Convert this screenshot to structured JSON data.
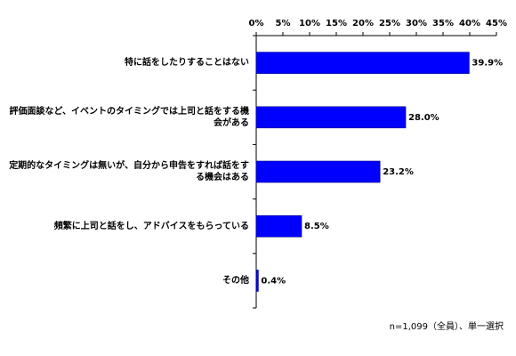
{
  "chart_data": {
    "type": "hbar",
    "categories": [
      "特に話をしたりすることはない",
      "評価面談など、イベントのタイミングでは上司と話をする機会がある",
      "定期的なタイミングは無いが、自分から申告をすれば話をする機会はある",
      "頻繁に上司と話をし、アドバイスをもらっている",
      "その他"
    ],
    "values": [
      39.9,
      28.0,
      23.2,
      8.5,
      0.4
    ],
    "value_labels": [
      "39.9%",
      "28.0%",
      "23.2%",
      "8.5%",
      "0.4%"
    ],
    "color": "#0000ff",
    "xlim": [
      0,
      45
    ],
    "xticks": [
      {
        "value": 0,
        "label": "0%"
      },
      {
        "value": 5,
        "label": "5%"
      },
      {
        "value": 10,
        "label": "10%"
      },
      {
        "value": 15,
        "label": "15%"
      },
      {
        "value": 20,
        "label": "20%"
      },
      {
        "value": 25,
        "label": "25%"
      },
      {
        "value": 30,
        "label": "30%"
      },
      {
        "value": 35,
        "label": "35%"
      },
      {
        "value": 40,
        "label": "40%"
      },
      {
        "value": 45,
        "label": "45%"
      }
    ],
    "note": "n=1,099（全員）、単一選択"
  }
}
